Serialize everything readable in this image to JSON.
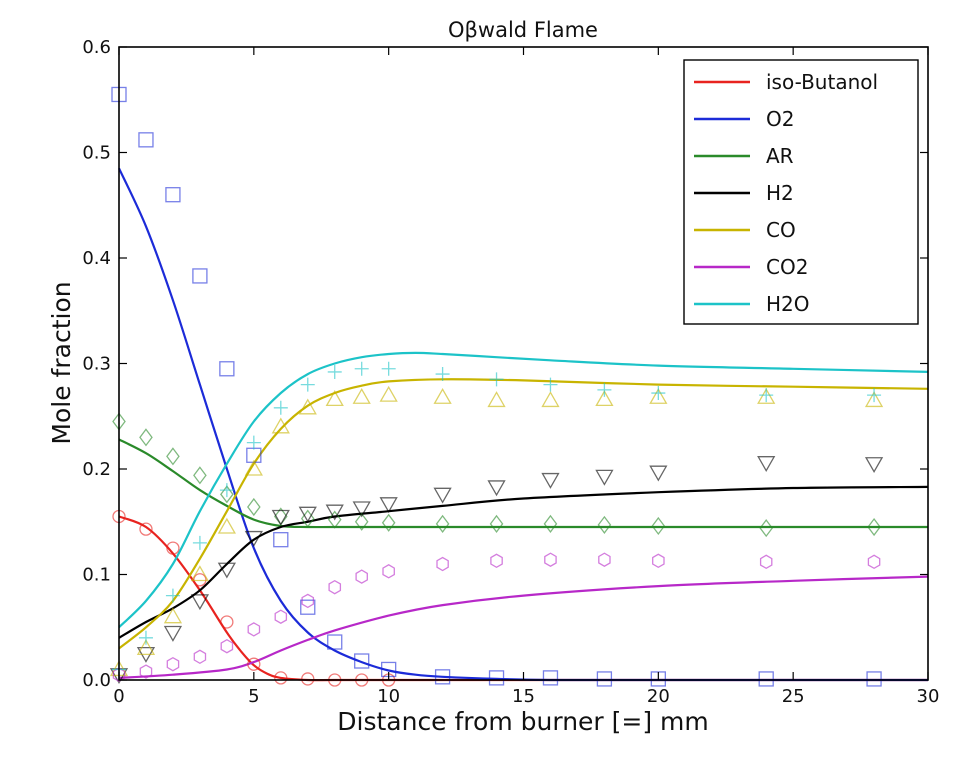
{
  "chart_data": {
    "type": "line",
    "title": "Oβwald Flame",
    "xlabel": "Distance from burner [=] mm",
    "ylabel": "Mole fraction",
    "xlim": [
      0,
      30
    ],
    "ylim": [
      0,
      0.6
    ],
    "xticks": [
      0,
      5,
      10,
      15,
      20,
      25,
      30
    ],
    "xtick_labels": [
      "0",
      "5",
      "10",
      "15",
      "20",
      "25",
      "30"
    ],
    "yticks": [
      0,
      0.1,
      0.2,
      0.3,
      0.4,
      0.5,
      0.6
    ],
    "ytick_labels": [
      "0.0",
      "0.1",
      "0.2",
      "0.3",
      "0.4",
      "0.5",
      "0.6"
    ],
    "grid": false,
    "legend_position": "top-right",
    "series": [
      {
        "name": "iso-Butanol",
        "color": "#e8231f",
        "marker": "circle",
        "x": [
          0,
          1,
          2,
          3,
          4,
          4.5,
          5,
          5.5,
          6,
          7,
          8,
          10,
          15,
          20,
          25,
          30
        ],
        "y": [
          0.155,
          0.145,
          0.12,
          0.085,
          0.045,
          0.028,
          0.014,
          0.006,
          0.002,
          0,
          0,
          0,
          0,
          0,
          0,
          0
        ],
        "points_x": [
          0,
          1,
          2,
          3,
          4,
          5,
          6,
          7,
          8,
          9,
          10
        ],
        "points_y": [
          0.155,
          0.143,
          0.125,
          0.095,
          0.055,
          0.015,
          0.002,
          0.001,
          0,
          0,
          0
        ]
      },
      {
        "name": "O2",
        "color": "#1c2bd8",
        "marker": "square",
        "x": [
          0,
          1,
          2,
          3,
          4,
          5,
          6,
          7,
          8,
          9,
          10,
          11,
          12,
          14,
          16,
          20,
          25,
          30
        ],
        "y": [
          0.485,
          0.43,
          0.36,
          0.28,
          0.2,
          0.125,
          0.075,
          0.045,
          0.028,
          0.017,
          0.009,
          0.005,
          0.003,
          0.001,
          0,
          0,
          0,
          0
        ],
        "points_x": [
          0,
          1,
          2,
          3,
          4,
          5,
          6,
          7,
          8,
          9,
          10,
          12,
          14,
          16,
          18,
          20,
          24,
          28
        ],
        "points_y": [
          0.555,
          0.512,
          0.46,
          0.383,
          0.295,
          0.213,
          0.133,
          0.069,
          0.036,
          0.018,
          0.01,
          0.003,
          0.002,
          0.002,
          0.001,
          0.001,
          0.001,
          0.001
        ]
      },
      {
        "name": "AR",
        "color": "#2a8a2a",
        "marker": "diamond",
        "x": [
          0,
          1,
          2,
          3,
          4,
          5,
          6,
          7,
          8,
          10,
          12,
          15,
          20,
          25,
          30
        ],
        "y": [
          0.228,
          0.215,
          0.198,
          0.18,
          0.165,
          0.152,
          0.146,
          0.145,
          0.145,
          0.145,
          0.145,
          0.145,
          0.145,
          0.145,
          0.145
        ],
        "points_x": [
          0,
          1,
          2,
          3,
          4,
          5,
          6,
          7,
          8,
          9,
          10,
          12,
          14,
          16,
          18,
          20,
          24,
          28
        ],
        "points_y": [
          0.245,
          0.23,
          0.212,
          0.194,
          0.176,
          0.164,
          0.155,
          0.153,
          0.152,
          0.15,
          0.149,
          0.148,
          0.148,
          0.148,
          0.147,
          0.146,
          0.144,
          0.145
        ]
      },
      {
        "name": "H2",
        "color": "#000000",
        "marker": "triangle-down",
        "x": [
          0,
          1,
          2,
          3,
          4,
          5,
          6,
          7,
          8,
          10,
          12,
          15,
          20,
          25,
          30
        ],
        "y": [
          0.04,
          0.055,
          0.068,
          0.085,
          0.11,
          0.133,
          0.145,
          0.15,
          0.155,
          0.16,
          0.165,
          0.172,
          0.178,
          0.182,
          0.183
        ],
        "points_x": [
          0,
          1,
          2,
          3,
          4,
          5,
          6,
          7,
          8,
          9,
          10,
          12,
          14,
          16,
          18,
          20,
          24,
          28
        ],
        "points_y": [
          0.005,
          0.025,
          0.045,
          0.075,
          0.105,
          0.135,
          0.155,
          0.158,
          0.16,
          0.163,
          0.167,
          0.176,
          0.183,
          0.19,
          0.193,
          0.197,
          0.206,
          0.205
        ]
      },
      {
        "name": "CO",
        "color": "#c8b400",
        "marker": "triangle-up",
        "x": [
          0,
          1,
          2,
          3,
          4,
          5,
          6,
          7,
          8,
          9,
          10,
          12,
          15,
          20,
          25,
          30
        ],
        "y": [
          0.03,
          0.05,
          0.075,
          0.115,
          0.16,
          0.205,
          0.238,
          0.26,
          0.272,
          0.279,
          0.283,
          0.285,
          0.284,
          0.28,
          0.278,
          0.276
        ],
        "points_x": [
          0,
          1,
          2,
          3,
          4,
          5,
          6,
          7,
          8,
          9,
          10,
          12,
          14,
          16,
          18,
          20,
          24,
          28
        ],
        "points_y": [
          0.01,
          0.03,
          0.06,
          0.1,
          0.145,
          0.2,
          0.24,
          0.258,
          0.266,
          0.268,
          0.27,
          0.268,
          0.265,
          0.265,
          0.266,
          0.268,
          0.268,
          0.265
        ]
      },
      {
        "name": "CO2",
        "color": "#b728c8",
        "marker": "hexagon",
        "x": [
          0,
          2,
          4,
          5,
          6,
          7,
          8,
          10,
          12,
          15,
          20,
          25,
          30
        ],
        "y": [
          0.002,
          0.005,
          0.01,
          0.017,
          0.028,
          0.038,
          0.047,
          0.061,
          0.071,
          0.08,
          0.089,
          0.094,
          0.098
        ],
        "points_x": [
          0,
          1,
          2,
          3,
          4,
          5,
          6,
          7,
          8,
          9,
          10,
          12,
          14,
          16,
          18,
          20,
          24,
          28
        ],
        "points_y": [
          0.005,
          0.008,
          0.015,
          0.022,
          0.032,
          0.048,
          0.06,
          0.075,
          0.088,
          0.098,
          0.103,
          0.11,
          0.113,
          0.114,
          0.114,
          0.113,
          0.112,
          0.112
        ]
      },
      {
        "name": "H2O",
        "color": "#1cc3c8",
        "marker": "plus",
        "x": [
          0,
          1,
          2,
          3,
          4,
          5,
          6,
          7,
          8,
          9,
          10,
          11,
          12,
          14,
          16,
          20,
          25,
          30
        ],
        "y": [
          0.05,
          0.075,
          0.11,
          0.16,
          0.205,
          0.245,
          0.272,
          0.29,
          0.3,
          0.306,
          0.309,
          0.31,
          0.309,
          0.306,
          0.303,
          0.298,
          0.295,
          0.292
        ],
        "points_x": [
          0,
          1,
          2,
          3,
          4,
          5,
          6,
          7,
          8,
          9,
          10,
          12,
          14,
          16,
          18,
          20,
          24,
          28
        ],
        "points_y": [
          0.01,
          0.04,
          0.08,
          0.13,
          0.18,
          0.225,
          0.258,
          0.28,
          0.292,
          0.295,
          0.295,
          0.29,
          0.285,
          0.28,
          0.275,
          0.272,
          0.27,
          0.27
        ]
      }
    ]
  }
}
